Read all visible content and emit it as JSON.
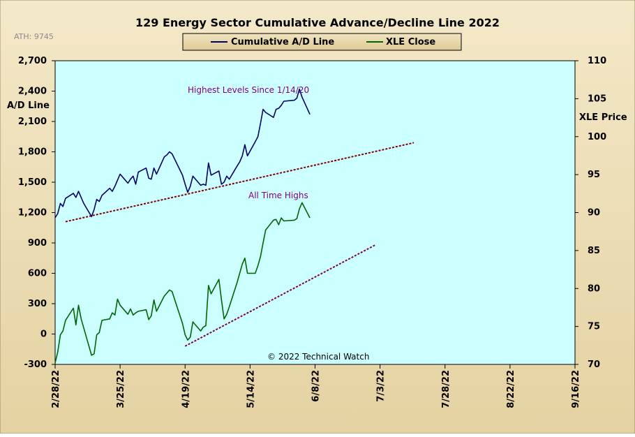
{
  "chart_data": {
    "type": "line",
    "title": "129 Energy Sector Cumulative Advance/Decline Line 2022",
    "ath_label": "ATH: 9745",
    "ylabel_left": "A/D Line",
    "ylabel_right": "XLE Price",
    "ylim_left": [
      -300,
      2700
    ],
    "ylim_right": [
      70,
      110
    ],
    "yticks_left": [
      "2,700",
      "2,400",
      "2,100",
      "1,800",
      "1,500",
      "1,200",
      "900",
      "600",
      "300",
      "0",
      "-300"
    ],
    "yticks_right": [
      "110",
      "105",
      "100",
      "95",
      "90",
      "85",
      "80",
      "75",
      "70"
    ],
    "x_tick_labels": [
      "2/28/22",
      "3/25/22",
      "4/19/22",
      "5/14/22",
      "6/8/22",
      "7/3/22",
      "7/28/22",
      "8/22/22",
      "9/16/22"
    ],
    "xlim": [
      "2022-02-28",
      "2022-09-16"
    ],
    "legend": {
      "position": "top-center",
      "entries": [
        {
          "label": "Cumulative A/D Line",
          "color": "#000066"
        },
        {
          "label": "XLE Close",
          "color": "#006600"
        }
      ]
    },
    "annotations": [
      {
        "text": "Highest Levels Since 1/14/20",
        "color": "#800080"
      },
      {
        "text": "All Time Highs",
        "color": "#800080"
      }
    ],
    "copyright": "© 2022 Technical Watch",
    "plot_background": "#ccffff",
    "frame_background": "#eee0b8",
    "series": [
      {
        "name": "Cumulative A/D Line",
        "axis": "left",
        "color": "#000066",
        "x": [
          "2022-02-28",
          "2022-03-01",
          "2022-03-02",
          "2022-03-03",
          "2022-03-04",
          "2022-03-07",
          "2022-03-08",
          "2022-03-09",
          "2022-03-10",
          "2022-03-11",
          "2022-03-14",
          "2022-03-15",
          "2022-03-16",
          "2022-03-17",
          "2022-03-18",
          "2022-03-21",
          "2022-03-22",
          "2022-03-23",
          "2022-03-24",
          "2022-03-25",
          "2022-03-28",
          "2022-03-29",
          "2022-03-30",
          "2022-03-31",
          "2022-04-01",
          "2022-04-04",
          "2022-04-05",
          "2022-04-06",
          "2022-04-07",
          "2022-04-08",
          "2022-04-11",
          "2022-04-12",
          "2022-04-13",
          "2022-04-14",
          "2022-04-18",
          "2022-04-19",
          "2022-04-20",
          "2022-04-21",
          "2022-04-22",
          "2022-04-25",
          "2022-04-26",
          "2022-04-27",
          "2022-04-28",
          "2022-04-29",
          "2022-05-02",
          "2022-05-03",
          "2022-05-04",
          "2022-05-05",
          "2022-05-06",
          "2022-05-09",
          "2022-05-10",
          "2022-05-11",
          "2022-05-12",
          "2022-05-13",
          "2022-05-16",
          "2022-05-17",
          "2022-05-18",
          "2022-05-19",
          "2022-05-20",
          "2022-05-23",
          "2022-05-24",
          "2022-05-25",
          "2022-05-26",
          "2022-05-27",
          "2022-05-31",
          "2022-06-01",
          "2022-06-02",
          "2022-06-03",
          "2022-06-06",
          "2022-06-07",
          "2022-06-08",
          "2022-06-09",
          "2022-06-10"
        ],
        "values": [
          1150,
          1190,
          1290,
          1260,
          1340,
          1390,
          1350,
          1410,
          1350,
          1290,
          1160,
          1230,
          1330,
          1310,
          1370,
          1440,
          1410,
          1460,
          1520,
          1580,
          1490,
          1530,
          1560,
          1480,
          1600,
          1640,
          1540,
          1530,
          1640,
          1580,
          1750,
          1770,
          1800,
          1780,
          1570,
          1480,
          1400,
          1460,
          1560,
          1470,
          1480,
          1470,
          1690,
          1570,
          1610,
          1480,
          1500,
          1560,
          1530,
          1660,
          1700,
          1760,
          1870,
          1760,
          1900,
          1950,
          2080,
          2220,
          2190,
          2140,
          2220,
          2230,
          2260,
          2300,
          2310,
          2330,
          2420,
          2340,
          2170,
          null,
          null,
          null,
          null
        ]
      },
      {
        "name": "XLE Close",
        "axis": "right",
        "color": "#006600",
        "x": [
          "2022-02-28",
          "2022-03-01",
          "2022-03-02",
          "2022-03-03",
          "2022-03-04",
          "2022-03-07",
          "2022-03-08",
          "2022-03-09",
          "2022-03-10",
          "2022-03-11",
          "2022-03-14",
          "2022-03-15",
          "2022-03-16",
          "2022-03-17",
          "2022-03-18",
          "2022-03-21",
          "2022-03-22",
          "2022-03-23",
          "2022-03-24",
          "2022-03-25",
          "2022-03-28",
          "2022-03-29",
          "2022-03-30",
          "2022-03-31",
          "2022-04-01",
          "2022-04-04",
          "2022-04-05",
          "2022-04-06",
          "2022-04-07",
          "2022-04-08",
          "2022-04-11",
          "2022-04-12",
          "2022-04-13",
          "2022-04-14",
          "2022-04-18",
          "2022-04-19",
          "2022-04-20",
          "2022-04-21",
          "2022-04-22",
          "2022-04-25",
          "2022-04-26",
          "2022-04-27",
          "2022-04-28",
          "2022-04-29",
          "2022-05-02",
          "2022-05-03",
          "2022-05-04",
          "2022-05-05",
          "2022-05-06",
          "2022-05-09",
          "2022-05-10",
          "2022-05-11",
          "2022-05-12",
          "2022-05-13",
          "2022-05-16",
          "2022-05-17",
          "2022-05-18",
          "2022-05-19",
          "2022-05-20",
          "2022-05-23",
          "2022-05-24",
          "2022-05-25",
          "2022-05-26",
          "2022-05-27",
          "2022-05-31",
          "2022-06-01",
          "2022-06-02",
          "2022-06-03",
          "2022-06-06",
          "2022-06-07",
          "2022-06-08",
          "2022-06-09",
          "2022-06-10"
        ],
        "values": [
          70.2,
          71.6,
          73.9,
          74.4,
          75.8,
          77.4,
          75.2,
          77.8,
          76.0,
          74.8,
          71.2,
          71.4,
          73.9,
          74.2,
          75.8,
          76.0,
          76.8,
          76.5,
          78.6,
          77.8,
          76.6,
          77.3,
          76.5,
          76.8,
          77.0,
          77.2,
          75.9,
          76.4,
          78.5,
          77.0,
          79.0,
          79.4,
          79.8,
          79.6,
          75.4,
          73.9,
          73.2,
          73.6,
          75.6,
          74.4,
          74.9,
          75.1,
          80.4,
          79.3,
          81.2,
          78.5,
          76.0,
          76.6,
          77.6,
          80.8,
          82.0,
          83.2,
          84.0,
          82.0,
          82.0,
          83.0,
          84.2,
          86.0,
          87.7,
          89.0,
          89.1,
          88.4,
          89.3,
          88.9,
          89.0,
          89.2,
          90.5,
          91.3,
          89.3,
          null,
          null,
          null,
          null
        ]
      }
    ],
    "trendlines": [
      {
        "axis": "left",
        "color": "#800000",
        "x": [
          "2022-03-04",
          "2022-07-16"
        ],
        "values": [
          1110,
          1890
        ]
      },
      {
        "axis": "right",
        "color": "#800040",
        "x": [
          "2022-04-19",
          "2022-07-01"
        ],
        "values": [
          72.4,
          85.7
        ]
      }
    ]
  }
}
